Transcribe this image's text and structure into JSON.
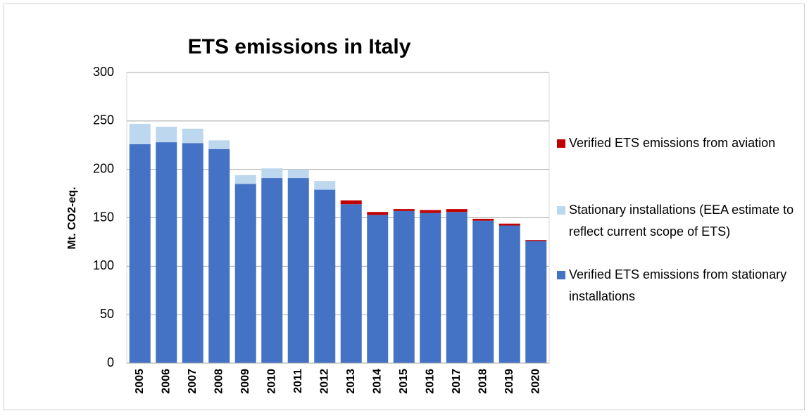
{
  "chart_data": {
    "type": "stacked_bar",
    "title": "ETS emissions in Italy",
    "y_label": "Mt. CO2-eq.",
    "categories": [
      "2005",
      "2006",
      "2007",
      "2008",
      "2009",
      "2010",
      "2011",
      "2012",
      "2013",
      "2014",
      "2015",
      "2016",
      "2017",
      "2018",
      "2019",
      "2020"
    ],
    "series": [
      {
        "name": "Verified ETS emissions from stationary installations",
        "color": "#4472c4",
        "values": [
          226,
          228,
          227,
          221,
          185,
          191,
          191,
          179,
          164,
          153,
          157,
          155,
          156,
          147,
          142,
          126
        ]
      },
      {
        "name": "Stationary installations (EEA estimate to reflect current scope of ETS)",
        "color": "#bdd7ee",
        "values": [
          21,
          16,
          15,
          9,
          9,
          10,
          9,
          9,
          0,
          0,
          0,
          0,
          0,
          0,
          0,
          0
        ]
      },
      {
        "name": "Verified ETS emissions from aviation",
        "color": "#c00000",
        "values": [
          0,
          0,
          0,
          0,
          0,
          0,
          0,
          0,
          4,
          3,
          2,
          3,
          3,
          2,
          2,
          1
        ]
      }
    ],
    "ylim": [
      0,
      300
    ],
    "yticks": [
      0,
      50,
      100,
      150,
      200,
      250,
      300
    ],
    "grid": true
  }
}
